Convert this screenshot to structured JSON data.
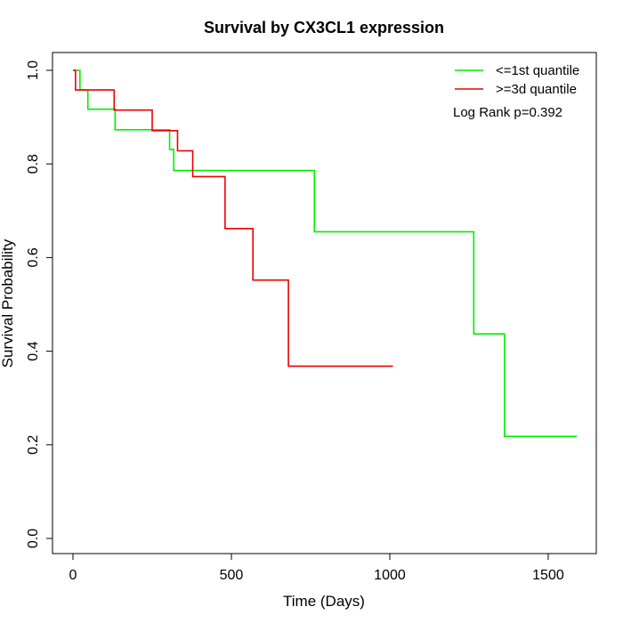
{
  "chart_data": {
    "type": "line",
    "title": "Survival by CX3CL1 expression",
    "xlabel": "Time (Days)",
    "ylabel": "Survival Probability",
    "xlim": [
      0,
      1590
    ],
    "ylim": [
      0,
      1.0
    ],
    "x_ticks": [
      0,
      500,
      1000,
      1500
    ],
    "y_ticks": [
      0.0,
      0.2,
      0.4,
      0.6,
      0.8,
      1.0
    ],
    "x_tick_labels": [
      "0",
      "500",
      "1000",
      "1500"
    ],
    "y_tick_labels": [
      "0.0",
      "0.2",
      "0.4",
      "0.6",
      "0.8",
      "1.0"
    ],
    "grid": false,
    "legend_position": "top-right",
    "annotation": "Log Rank p=0.392",
    "series": [
      {
        "name": "<=1st quantile",
        "color": "#00ee00",
        "step": true,
        "x": [
          0,
          22,
          47,
          133,
          305,
          318,
          762,
          1265,
          1362,
          1590
        ],
        "y": [
          1.0,
          0.958,
          0.917,
          0.873,
          0.831,
          0.786,
          0.655,
          0.437,
          0.218,
          0.218
        ]
      },
      {
        "name": ">=3d quantile",
        "color": "#ee0000",
        "step": true,
        "x": [
          0,
          8,
          130,
          250,
          330,
          378,
          480,
          568,
          680,
          1010
        ],
        "y": [
          1.0,
          0.958,
          0.915,
          0.871,
          0.828,
          0.773,
          0.662,
          0.552,
          0.368,
          0.368
        ]
      }
    ]
  }
}
